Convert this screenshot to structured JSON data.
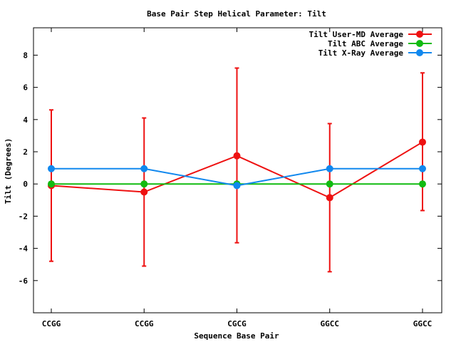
{
  "chart_data": {
    "type": "line",
    "title": "Base Pair Step Helical Parameter: Tilt",
    "xlabel": "Sequence Base Pair",
    "ylabel": "Tilt (Degrees)",
    "categories": [
      "CCGG",
      "CCGG",
      "CGCG",
      "GGCC",
      "GGCC"
    ],
    "ylim": [
      -8,
      9.7
    ],
    "yticks": [
      -6,
      -4,
      -2,
      0,
      2,
      4,
      6,
      8
    ],
    "ytick_labels": [
      "-6",
      "-4",
      "-2",
      "0",
      "2",
      "4",
      "6",
      "8"
    ],
    "grid": false,
    "legend_position": "top-right",
    "series": [
      {
        "name": "Tilt User-MD Average",
        "color": "#ee1111",
        "values": [
          -0.1,
          -0.5,
          1.75,
          -0.85,
          2.6
        ],
        "error_high": [
          4.6,
          4.1,
          7.2,
          3.75,
          6.9
        ],
        "error_low": [
          -4.8,
          -5.1,
          -3.65,
          -5.45,
          -1.65
        ]
      },
      {
        "name": "Tilt ABC Average",
        "color": "#11bb11",
        "values": [
          0,
          0,
          0,
          0,
          0
        ]
      },
      {
        "name": "Tilt X-Ray Average",
        "color": "#1188ee",
        "values": [
          0.95,
          0.95,
          -0.1,
          0.95,
          0.95
        ]
      }
    ]
  }
}
